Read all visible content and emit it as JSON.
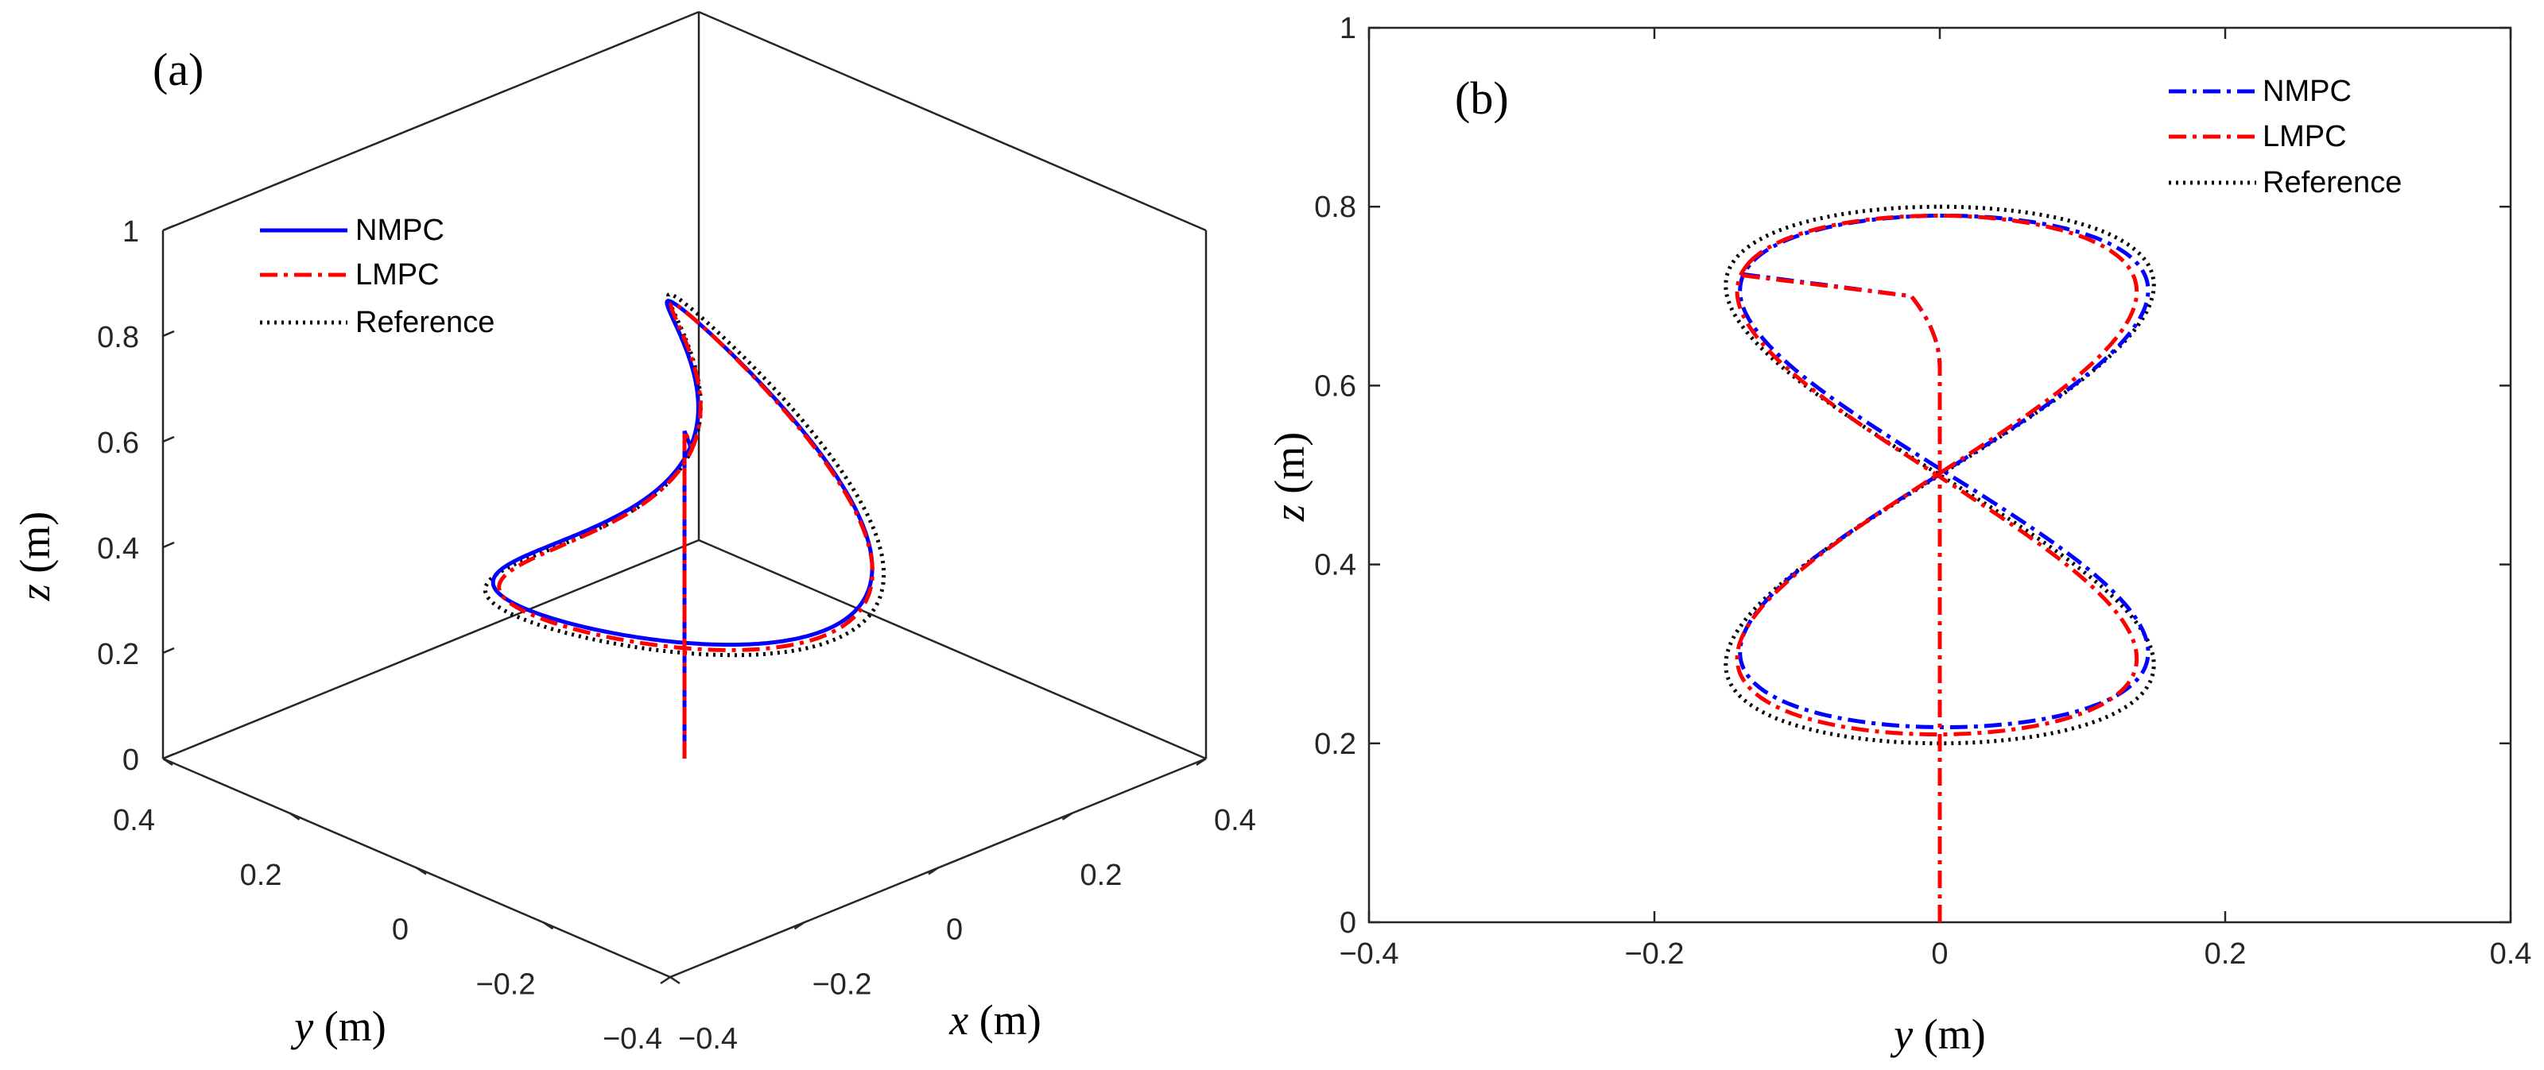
{
  "chart_data": [
    {
      "panel": "(a)",
      "type": "line",
      "projection": "3d",
      "xlabel": {
        "var": "x",
        "unit": "(m)"
      },
      "ylabel": {
        "var": "y",
        "unit": "(m)"
      },
      "zlabel": {
        "var": "z",
        "unit": "(m)"
      },
      "xlim": [
        -0.4,
        0.4
      ],
      "ylim": [
        -0.4,
        0.4
      ],
      "zlim": [
        0,
        1
      ],
      "x_ticks": [
        "-0.4",
        "-0.2",
        "0",
        "0.2",
        "0.4"
      ],
      "y_ticks": [
        "-0.4",
        "-0.2",
        "0",
        "0.2",
        "0.4"
      ],
      "z_ticks": [
        "0",
        "0.2",
        "0.4",
        "0.6",
        "0.8",
        "1"
      ],
      "legend_position": "top-left",
      "trajectory": "figure-eight: y = 0.15 sin(2t), z = 0.5 + 0.3 cos(t), x = 0.2 sin(t)",
      "series": [
        {
          "name": "NMPC",
          "style": "solid",
          "color": "#0000ff"
        },
        {
          "name": "LMPC",
          "style": "dashdot",
          "color": "#ff0000"
        },
        {
          "name": "Reference",
          "style": "dotted",
          "color": "#000000"
        }
      ]
    },
    {
      "panel": "(b)",
      "type": "line",
      "xlabel": {
        "var": "y",
        "unit": "(m)"
      },
      "ylabel": {
        "var": "z",
        "unit": "(m)"
      },
      "xlim": [
        -0.4,
        0.4
      ],
      "ylim": [
        0,
        1
      ],
      "x_ticks": [
        "-0.4",
        "-0.2",
        "0",
        "0.2",
        "0.4"
      ],
      "y_ticks": [
        "0",
        "0.2",
        "0.4",
        "0.6",
        "0.8",
        "1"
      ],
      "legend_position": "top-right",
      "reference": {
        "y_amplitude": 0.15,
        "z_center": 0.5,
        "z_amplitude": 0.3,
        "z_top": 0.8,
        "z_bottom": 0.2
      },
      "nmpc": {
        "y_amplitude": 0.143,
        "z_top": 0.79,
        "z_bottom": 0.218,
        "start": {
          "y": 0,
          "z": 0
        }
      },
      "lmpc": {
        "y_amplitude": 0.14,
        "z_top": 0.79,
        "z_bottom": 0.21,
        "start": {
          "y": 0,
          "z": 0
        }
      },
      "series": [
        {
          "name": "NMPC",
          "style": "dashdot",
          "color": "#0000ff"
        },
        {
          "name": "LMPC",
          "style": "dashdot",
          "color": "#ff0000"
        },
        {
          "name": "Reference",
          "style": "dotted",
          "color": "#000000"
        }
      ]
    }
  ]
}
